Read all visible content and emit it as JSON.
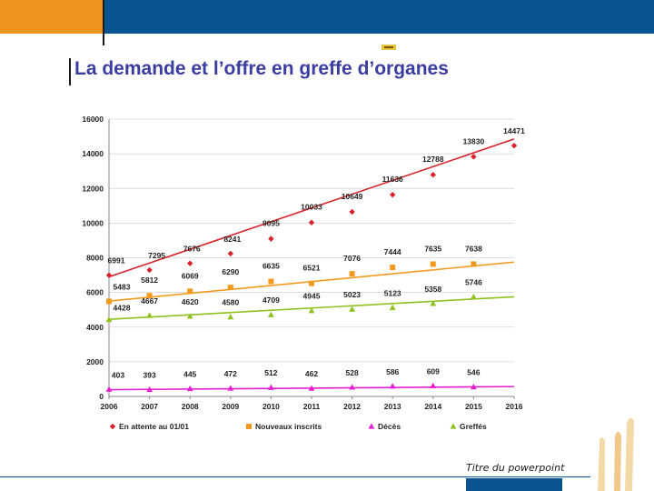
{
  "slide": {
    "title": "La demande et l’offre en greffe d’organes",
    "footer": "Titre du powerpoint"
  },
  "colors": {
    "orange_block": "#f0921e",
    "blue_band": "#0a5591",
    "title_color": "#3a3da0"
  },
  "chart_data": {
    "type": "line",
    "title": "",
    "xlabel": "",
    "ylabel": "",
    "x": [
      2006,
      2007,
      2008,
      2009,
      2010,
      2011,
      2012,
      2013,
      2014,
      2015,
      2016
    ],
    "ylim": [
      0,
      16000
    ],
    "yticks": [
      0,
      2000,
      4000,
      6000,
      8000,
      10000,
      12000,
      14000,
      16000
    ],
    "grid": true,
    "legend_position": "bottom",
    "series": [
      {
        "name": "En attente au 01/01",
        "color": "#d9222a",
        "marker": "diamond",
        "x": [
          2006,
          2007,
          2008,
          2009,
          2010,
          2011,
          2012,
          2013,
          2014,
          2015,
          2016
        ],
        "values": [
          6991,
          7295,
          7676,
          8241,
          9095,
          10033,
          10649,
          11636,
          12788,
          13830,
          14471
        ],
        "trend": [
          6900,
          14850
        ]
      },
      {
        "name": "Nouveaux inscrits",
        "color": "#f39a1e",
        "marker": "square",
        "x": [
          2006,
          2007,
          2008,
          2009,
          2010,
          2011,
          2012,
          2013,
          2014,
          2015
        ],
        "values": [
          5483,
          5812,
          6069,
          6290,
          6635,
          6521,
          7076,
          7444,
          7635,
          7638
        ],
        "trend": [
          5500,
          7750
        ]
      },
      {
        "name": "Décès",
        "color": "#e61ed2",
        "marker": "triangle",
        "x": [
          2006,
          2007,
          2008,
          2009,
          2010,
          2011,
          2012,
          2013,
          2014,
          2015
        ],
        "values": [
          403,
          393,
          445,
          472,
          512,
          462,
          528,
          586,
          609,
          546
        ],
        "trend": [
          390,
          570
        ]
      },
      {
        "name": "Greffés",
        "color": "#8dc21f",
        "marker": "triangle",
        "x": [
          2006,
          2007,
          2008,
          2009,
          2010,
          2011,
          2012,
          2013,
          2014,
          2015
        ],
        "values": [
          4428,
          4667,
          4620,
          4580,
          4709,
          4945,
          5023,
          5123,
          5358,
          5746
        ],
        "trend": [
          4450,
          5750
        ]
      }
    ]
  }
}
